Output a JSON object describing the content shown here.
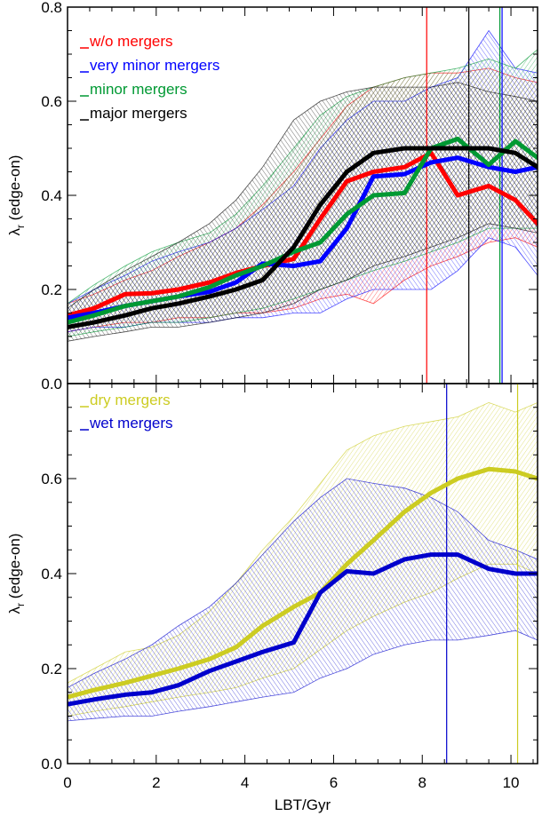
{
  "chart_data": [
    {
      "type": "line",
      "panel": "top",
      "xlabel": "",
      "ylabel_main": "λ",
      "ylabel_sub": "r",
      "ylabel_rest": " (edge-on)",
      "xlim": [
        0,
        10.6
      ],
      "ylim": [
        0,
        0.8
      ],
      "yticks": [
        "0.0",
        "0.2",
        "0.4",
        "0.6",
        "0.8"
      ],
      "legend_position": "top-left",
      "series": [
        {
          "name": "w/o mergers",
          "color": "#ff0000",
          "x": [
            0,
            0.6,
            1.3,
            1.9,
            2.5,
            3.2,
            3.8,
            4.4,
            5.1,
            5.7,
            6.3,
            6.9,
            7.6,
            8.2,
            8.8,
            9.5,
            10.1,
            10.6
          ],
          "y": [
            0.145,
            0.16,
            0.19,
            0.192,
            0.2,
            0.215,
            0.235,
            0.25,
            0.265,
            0.35,
            0.43,
            0.45,
            0.46,
            0.49,
            0.4,
            0.42,
            0.39,
            0.34
          ],
          "band_upper": [
            0.17,
            0.19,
            0.22,
            0.24,
            0.27,
            0.3,
            0.33,
            0.38,
            0.45,
            0.52,
            0.59,
            0.63,
            0.65,
            0.66,
            0.66,
            0.67,
            0.65,
            0.64
          ],
          "band_lower": [
            0.11,
            0.12,
            0.13,
            0.13,
            0.14,
            0.14,
            0.15,
            0.15,
            0.16,
            0.18,
            0.19,
            0.17,
            0.22,
            0.25,
            0.27,
            0.3,
            0.31,
            0.29
          ],
          "vline": 8.1
        },
        {
          "name": "very minor mergers",
          "color": "#0000ff",
          "x": [
            0,
            0.6,
            1.3,
            1.9,
            2.5,
            3.2,
            3.8,
            4.4,
            5.1,
            5.7,
            6.3,
            6.9,
            7.6,
            8.2,
            8.8,
            9.5,
            10.1,
            10.6
          ],
          "y": [
            0.14,
            0.15,
            0.165,
            0.175,
            0.185,
            0.195,
            0.215,
            0.255,
            0.25,
            0.26,
            0.33,
            0.44,
            0.445,
            0.47,
            0.48,
            0.46,
            0.45,
            0.46
          ],
          "band_upper": [
            0.17,
            0.2,
            0.23,
            0.26,
            0.28,
            0.3,
            0.33,
            0.37,
            0.42,
            0.5,
            0.56,
            0.6,
            0.6,
            0.63,
            0.65,
            0.75,
            0.67,
            0.66
          ],
          "band_lower": [
            0.11,
            0.12,
            0.12,
            0.13,
            0.13,
            0.13,
            0.14,
            0.14,
            0.15,
            0.15,
            0.18,
            0.2,
            0.2,
            0.2,
            0.24,
            0.31,
            0.29,
            0.23
          ],
          "vline": 9.8
        },
        {
          "name": "minor mergers",
          "color": "#009933",
          "x": [
            0,
            0.6,
            1.3,
            1.9,
            2.5,
            3.2,
            3.8,
            4.4,
            5.1,
            5.7,
            6.3,
            6.9,
            7.6,
            8.2,
            8.8,
            9.5,
            10.1,
            10.6
          ],
          "y": [
            0.13,
            0.145,
            0.165,
            0.175,
            0.185,
            0.205,
            0.23,
            0.25,
            0.28,
            0.3,
            0.36,
            0.4,
            0.405,
            0.5,
            0.52,
            0.465,
            0.515,
            0.48
          ],
          "band_upper": [
            0.17,
            0.21,
            0.25,
            0.28,
            0.3,
            0.32,
            0.36,
            0.42,
            0.5,
            0.57,
            0.61,
            0.63,
            0.65,
            0.66,
            0.67,
            0.69,
            0.67,
            0.71
          ],
          "band_lower": [
            0.1,
            0.11,
            0.12,
            0.13,
            0.13,
            0.14,
            0.15,
            0.16,
            0.18,
            0.2,
            0.22,
            0.24,
            0.26,
            0.28,
            0.3,
            0.33,
            0.33,
            0.33
          ],
          "vline": 9.75
        },
        {
          "name": "major mergers",
          "color": "#000000",
          "x": [
            0,
            0.6,
            1.3,
            1.9,
            2.5,
            3.2,
            3.8,
            4.4,
            5.1,
            5.7,
            6.3,
            6.9,
            7.6,
            8.2,
            8.8,
            9.5,
            10.1,
            10.6
          ],
          "y": [
            0.12,
            0.13,
            0.145,
            0.16,
            0.17,
            0.185,
            0.2,
            0.22,
            0.29,
            0.38,
            0.45,
            0.49,
            0.5,
            0.5,
            0.5,
            0.5,
            0.49,
            0.46
          ],
          "band_upper": [
            0.16,
            0.2,
            0.24,
            0.27,
            0.3,
            0.34,
            0.39,
            0.46,
            0.56,
            0.6,
            0.62,
            0.63,
            0.63,
            0.63,
            0.64,
            0.62,
            0.61,
            0.6
          ],
          "band_lower": [
            0.09,
            0.1,
            0.11,
            0.12,
            0.12,
            0.13,
            0.14,
            0.15,
            0.17,
            0.2,
            0.22,
            0.25,
            0.27,
            0.29,
            0.31,
            0.34,
            0.33,
            0.32
          ],
          "vline": 9.05
        }
      ]
    },
    {
      "type": "line",
      "panel": "bottom",
      "xlabel": "LBT/Gyr",
      "ylabel_main": "λ",
      "ylabel_sub": "r",
      "ylabel_rest": " (edge-on)",
      "xlim": [
        0,
        10.6
      ],
      "ylim": [
        0,
        0.8
      ],
      "xticks": [
        "0",
        "2",
        "4",
        "6",
        "8",
        "10"
      ],
      "yticks": [
        "0.0",
        "0.2",
        "0.4",
        "0.6"
      ],
      "legend_position": "top-left",
      "series": [
        {
          "name": "dry mergers",
          "color": "#cccc22",
          "x": [
            0,
            0.6,
            1.3,
            1.9,
            2.5,
            3.2,
            3.8,
            4.4,
            5.1,
            5.7,
            6.3,
            6.9,
            7.6,
            8.2,
            8.8,
            9.5,
            10.1,
            10.6
          ],
          "y": [
            0.14,
            0.155,
            0.17,
            0.185,
            0.2,
            0.22,
            0.245,
            0.29,
            0.33,
            0.36,
            0.42,
            0.47,
            0.53,
            0.57,
            0.6,
            0.62,
            0.615,
            0.6
          ],
          "band_upper": [
            0.17,
            0.2,
            0.235,
            0.245,
            0.27,
            0.32,
            0.38,
            0.45,
            0.52,
            0.59,
            0.66,
            0.69,
            0.71,
            0.72,
            0.73,
            0.76,
            0.74,
            0.76
          ],
          "band_lower": [
            0.1,
            0.11,
            0.12,
            0.13,
            0.14,
            0.15,
            0.16,
            0.18,
            0.2,
            0.24,
            0.28,
            0.31,
            0.34,
            0.36,
            0.39,
            0.42,
            0.42,
            0.4
          ],
          "vline": 10.15
        },
        {
          "name": "wet mergers",
          "color": "#0000cc",
          "x": [
            0,
            0.6,
            1.3,
            1.9,
            2.5,
            3.2,
            3.8,
            4.4,
            5.1,
            5.7,
            6.3,
            6.9,
            7.6,
            8.2,
            8.8,
            9.5,
            10.1,
            10.6
          ],
          "y": [
            0.125,
            0.135,
            0.145,
            0.15,
            0.165,
            0.195,
            0.215,
            0.235,
            0.255,
            0.36,
            0.405,
            0.4,
            0.43,
            0.44,
            0.44,
            0.41,
            0.4,
            0.4
          ],
          "band_upper": [
            0.16,
            0.19,
            0.22,
            0.25,
            0.29,
            0.33,
            0.38,
            0.44,
            0.51,
            0.56,
            0.6,
            0.59,
            0.58,
            0.56,
            0.53,
            0.47,
            0.45,
            0.43
          ],
          "band_lower": [
            0.09,
            0.095,
            0.1,
            0.1,
            0.11,
            0.12,
            0.13,
            0.14,
            0.15,
            0.18,
            0.2,
            0.23,
            0.25,
            0.26,
            0.26,
            0.27,
            0.28,
            0.26
          ],
          "vline": 8.55
        }
      ]
    }
  ]
}
